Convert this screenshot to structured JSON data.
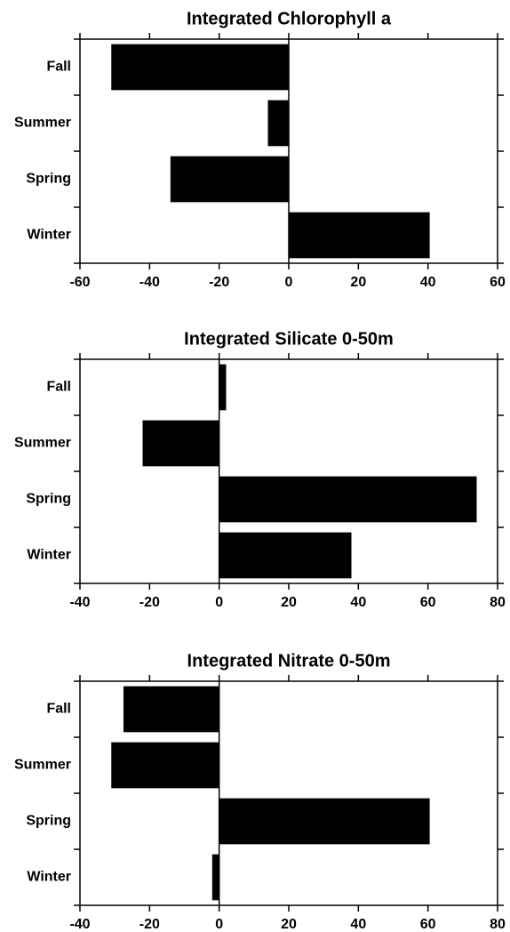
{
  "chart_data": [
    {
      "type": "hbar",
      "title": "Integrated Chlorophyll a",
      "categories": [
        "Fall",
        "Summer",
        "Spring",
        "Winter"
      ],
      "values": [
        -51,
        -6,
        -34,
        40.5
      ],
      "color": "#000000",
      "xlim": [
        -60,
        60
      ],
      "xticks": [
        -60,
        -40,
        -20,
        0,
        20,
        40,
        60
      ]
    },
    {
      "type": "hbar",
      "title": "Integrated Silicate 0-50m",
      "categories": [
        "Fall",
        "Summer",
        "Spring",
        "Winter"
      ],
      "values": [
        2,
        -22,
        74,
        38
      ],
      "color": "#000000",
      "xlim": [
        -40,
        80
      ],
      "xticks": [
        -40,
        -20,
        0,
        20,
        40,
        60,
        80
      ]
    },
    {
      "type": "hbar",
      "title": "Integrated Nitrate 0-50m",
      "categories": [
        "Fall",
        "Summer",
        "Spring",
        "Winter"
      ],
      "values": [
        -27.5,
        -31,
        60.5,
        -2
      ],
      "color": "#000000",
      "xlim": [
        -40,
        80
      ],
      "xticks": [
        -40,
        -20,
        0,
        20,
        40,
        60,
        80
      ]
    }
  ]
}
